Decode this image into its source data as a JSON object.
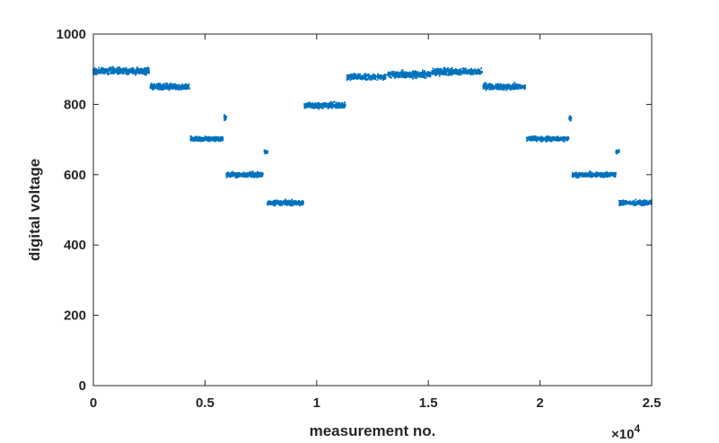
{
  "chart_data": {
    "type": "scatter",
    "title": "",
    "xlabel": "measurement no.",
    "ylabel": "digital voltage",
    "x_exponent_label": "×10",
    "x_exponent_power": "4",
    "xlim": [
      0,
      25000
    ],
    "ylim": [
      0,
      1000
    ],
    "x_ticks": [
      0,
      5000,
      10000,
      15000,
      20000,
      25000
    ],
    "x_tick_labels": [
      "0",
      "0.5",
      "1",
      "1.5",
      "2",
      "2.5"
    ],
    "y_ticks": [
      0,
      200,
      400,
      600,
      800,
      1000
    ],
    "y_tick_labels": [
      "0",
      "200",
      "400",
      "600",
      "800",
      "1000"
    ],
    "grid": false,
    "marker_color": "#0072BD",
    "series": [
      {
        "segments": [
          {
            "x_start": 0,
            "x_end": 2500,
            "y": 895,
            "noise": 8
          },
          {
            "x_start": 2550,
            "x_end": 4300,
            "y": 850,
            "noise": 7
          },
          {
            "x_start": 4350,
            "x_end": 5800,
            "y": 702,
            "noise": 6
          },
          {
            "x_start": 5850,
            "x_end": 5950,
            "y": 762,
            "noise": 5
          },
          {
            "x_start": 5950,
            "x_end": 7600,
            "y": 600,
            "noise": 6
          },
          {
            "x_start": 7650,
            "x_end": 7800,
            "y": 665,
            "noise": 5
          },
          {
            "x_start": 7800,
            "x_end": 9400,
            "y": 520,
            "noise": 6
          },
          {
            "x_start": 9450,
            "x_end": 11300,
            "y": 797,
            "noise": 7
          },
          {
            "x_start": 11350,
            "x_end": 13100,
            "y": 878,
            "noise": 7
          },
          {
            "x_start": 13150,
            "x_end": 15100,
            "y": 885,
            "noise": 8
          },
          {
            "x_start": 15150,
            "x_end": 17400,
            "y": 893,
            "noise": 8
          },
          {
            "x_start": 17450,
            "x_end": 19350,
            "y": 850,
            "noise": 7
          },
          {
            "x_start": 19400,
            "x_end": 21300,
            "y": 702,
            "noise": 6
          },
          {
            "x_start": 21300,
            "x_end": 21400,
            "y": 760,
            "noise": 5
          },
          {
            "x_start": 21450,
            "x_end": 23400,
            "y": 600,
            "noise": 6
          },
          {
            "x_start": 23400,
            "x_end": 23550,
            "y": 665,
            "noise": 5
          },
          {
            "x_start": 23550,
            "x_end": 25000,
            "y": 520,
            "noise": 6
          }
        ]
      }
    ]
  }
}
